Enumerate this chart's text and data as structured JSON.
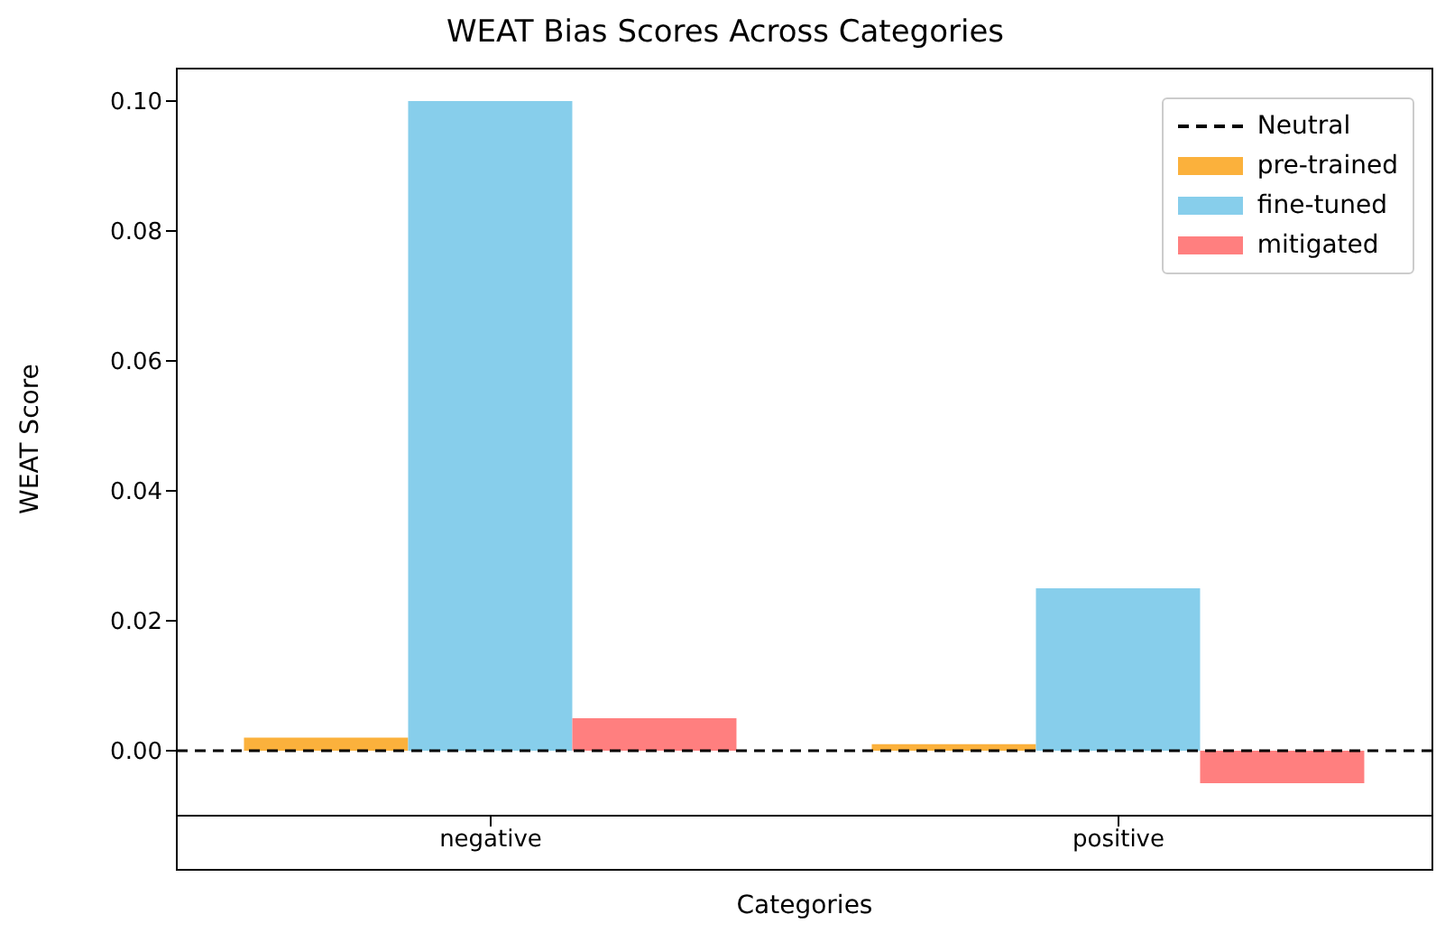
{
  "chart_data": {
    "type": "bar",
    "title": "WEAT Bias Scores Across Categories",
    "xlabel": "Categories",
    "ylabel": "WEAT Score",
    "categories": [
      "negative",
      "positive"
    ],
    "series": [
      {
        "name": "pre-trained",
        "color": "#fbb13c",
        "values": [
          0.002,
          0.001
        ]
      },
      {
        "name": "fine-tuned",
        "color": "#87ceeb",
        "values": [
          0.1,
          0.025
        ]
      },
      {
        "name": "mitigated",
        "color": "#ff7f7f",
        "values": [
          0.005,
          -0.005
        ]
      }
    ],
    "ylim": [
      -0.01,
      0.105
    ],
    "yticks": [
      {
        "value": 0,
        "label": "0.00"
      },
      {
        "value": 0.02,
        "label": "0.02"
      },
      {
        "value": 0.04,
        "label": "0.04"
      },
      {
        "value": 0.06,
        "label": "0.06"
      },
      {
        "value": 0.08,
        "label": "0.08"
      },
      {
        "value": 0.1,
        "label": "0.10"
      }
    ],
    "ref_lines": [
      {
        "axis": "y",
        "value": 0,
        "label": "Neutral",
        "color": "#000000",
        "line_style": "dashed"
      }
    ],
    "legend": "top right",
    "grid": false
  }
}
